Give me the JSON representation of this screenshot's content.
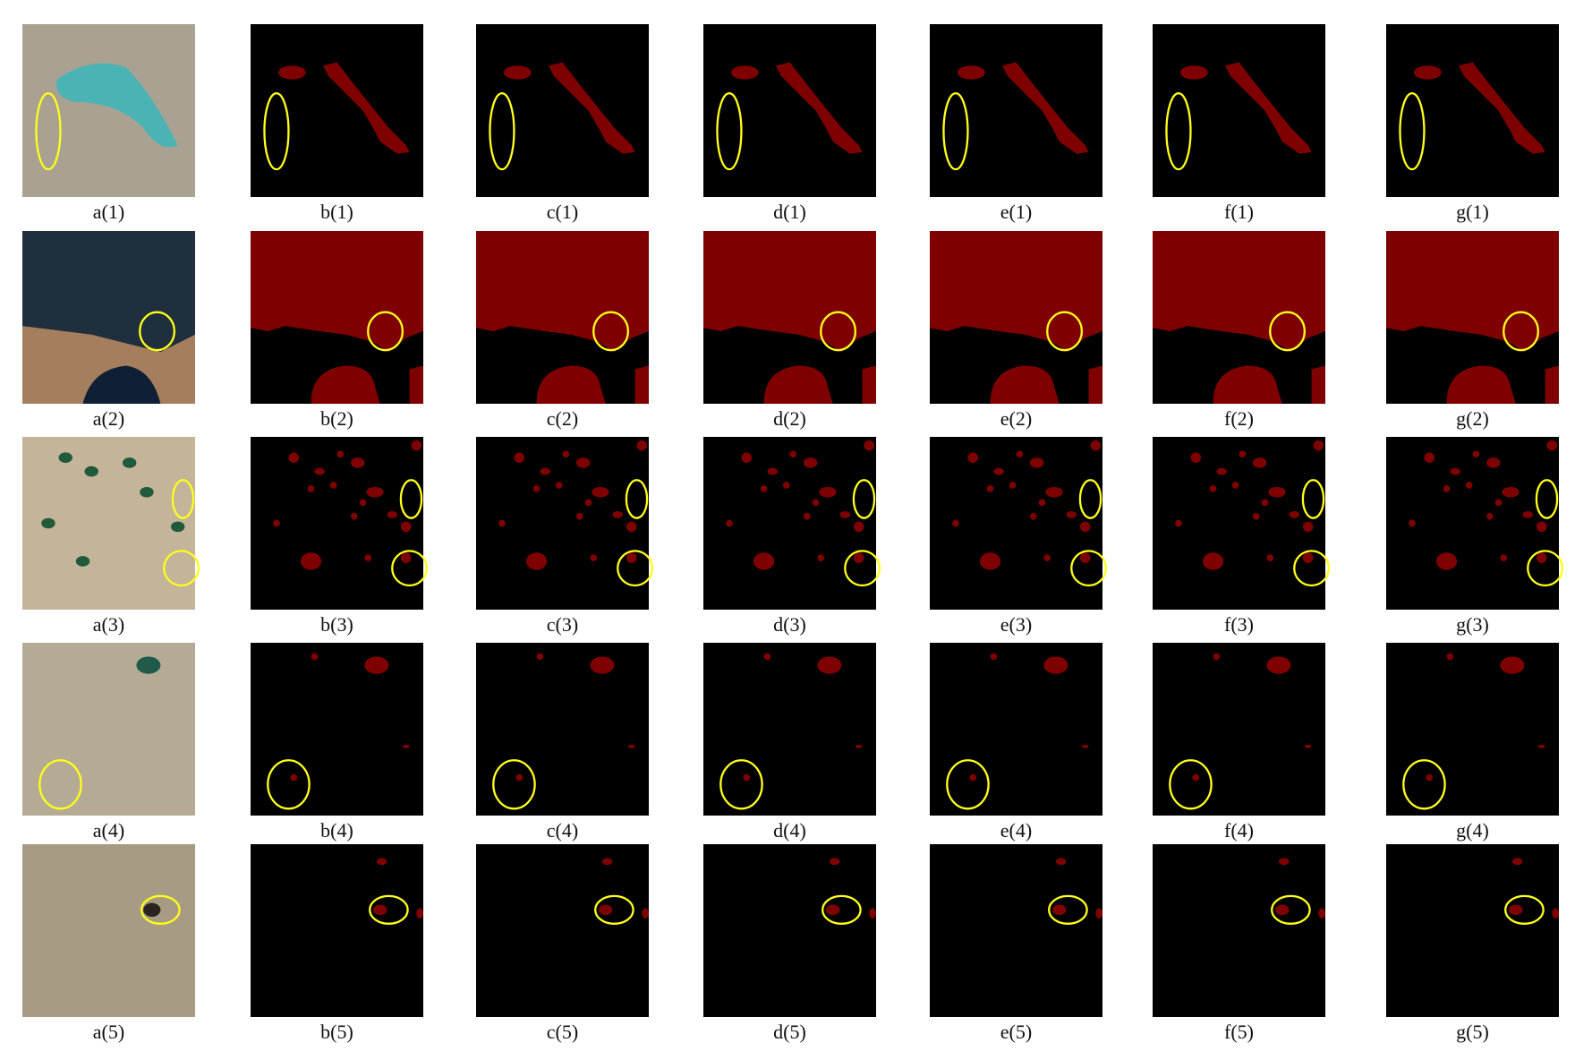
{
  "figure": {
    "rows": [
      {
        "labels": [
          "a(1)",
          "b(1)",
          "c(1)",
          "d(1)",
          "e(1)",
          "f(1)",
          "g(1)"
        ]
      },
      {
        "labels": [
          "a(2)",
          "b(2)",
          "c(2)",
          "d(2)",
          "e(2)",
          "f(2)",
          "g(2)"
        ]
      },
      {
        "labels": [
          "a(3)",
          "b(3)",
          "c(3)",
          "d(3)",
          "e(3)",
          "f(3)",
          "g(3)"
        ]
      },
      {
        "labels": [
          "a(4)",
          "b(4)",
          "c(4)",
          "d(4)",
          "e(4)",
          "f(4)",
          "g(4)"
        ]
      },
      {
        "labels": [
          "a(5)",
          "b(5)",
          "c(5)",
          "d(5)",
          "e(5)",
          "f(5)",
          "g(5)"
        ]
      }
    ]
  }
}
